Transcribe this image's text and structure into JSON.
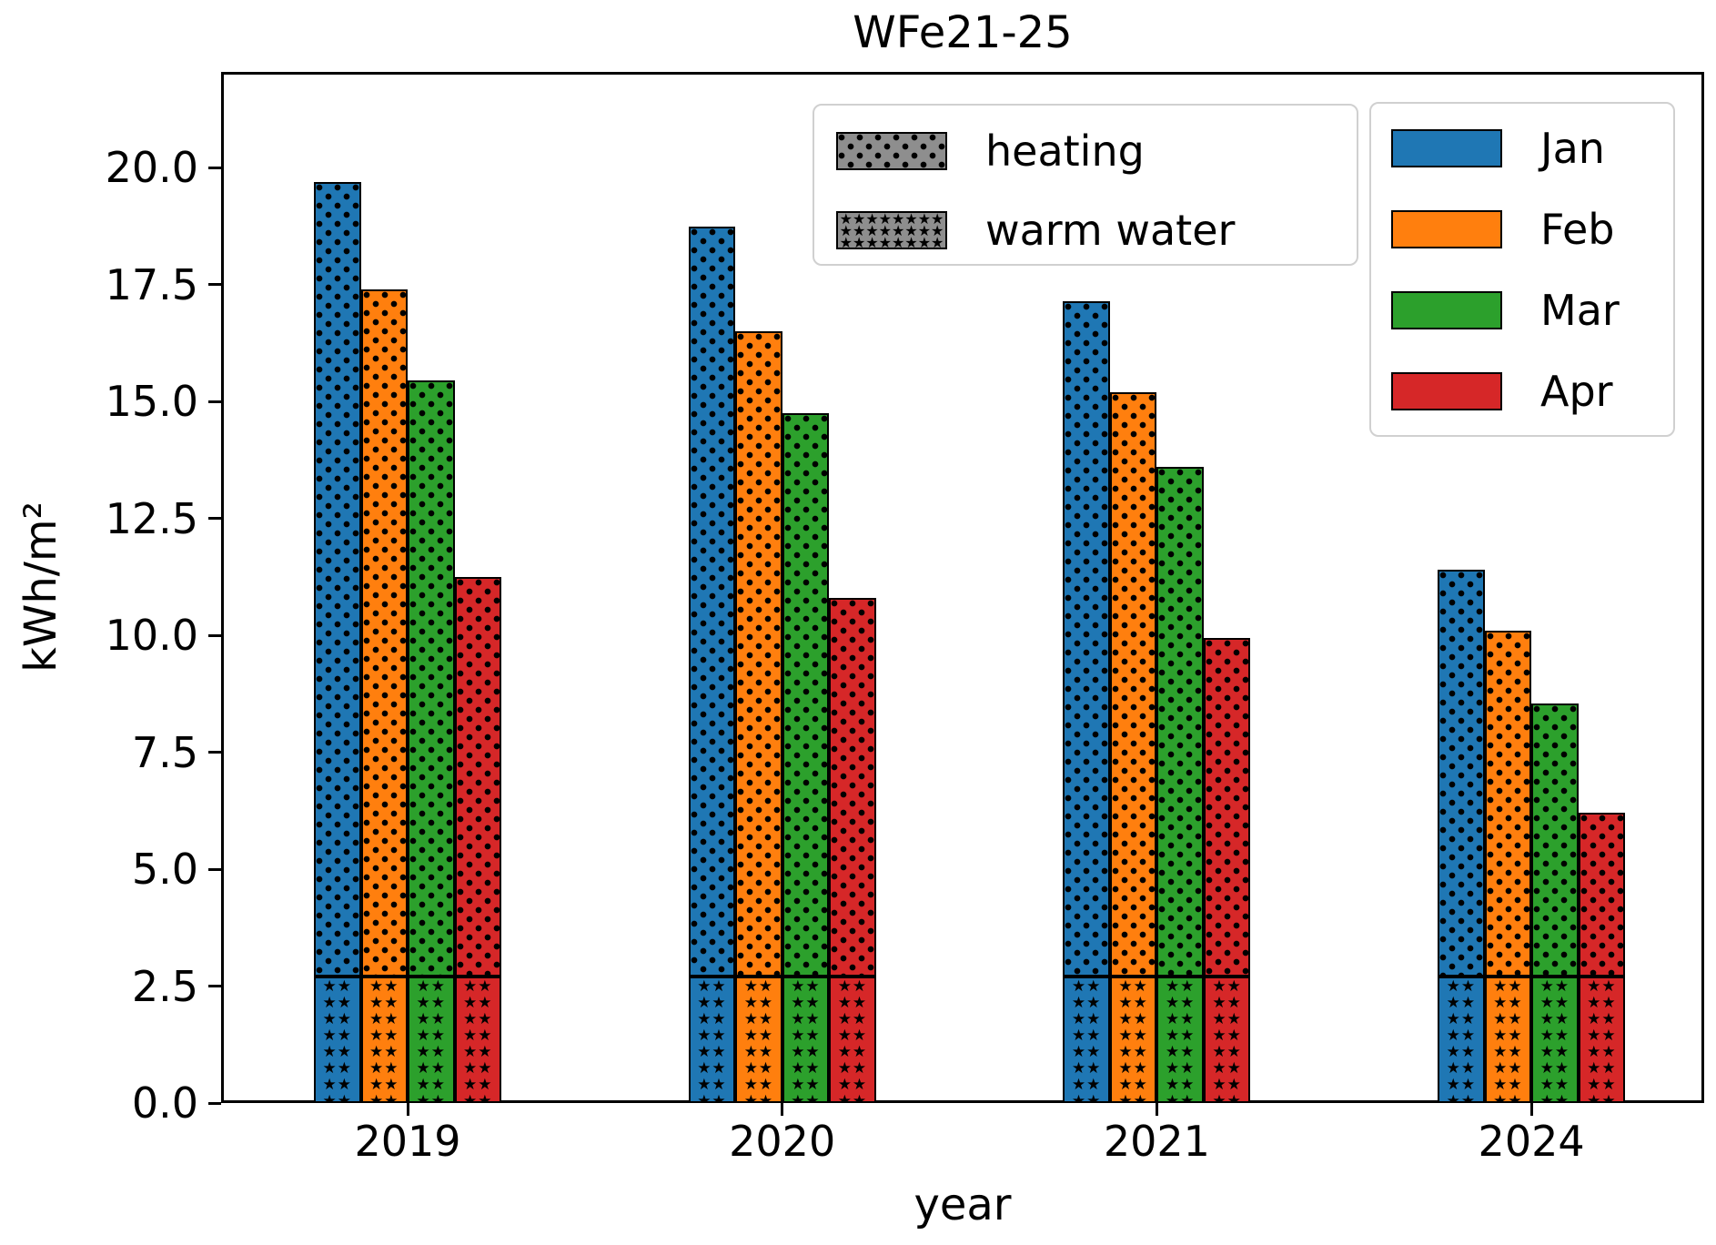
{
  "title": "WFe21-25",
  "axis": {
    "xlabel": "year",
    "ylabel": "kWh/m²",
    "ytick_labels": [
      "0.0",
      "2.5",
      "5.0",
      "7.5",
      "10.0",
      "12.5",
      "15.0",
      "17.5",
      "20.0"
    ],
    "xtick_labels": [
      "2019",
      "2020",
      "2021",
      "2024"
    ]
  },
  "legend_hatch": {
    "items": [
      {
        "label": "heating",
        "hatch": "dots"
      },
      {
        "label": "warm water",
        "hatch": "stars"
      }
    ],
    "patch_color": "#8e8e8e"
  },
  "legend_months": {
    "items": [
      {
        "label": "Jan",
        "color": "#1f77b4"
      },
      {
        "label": "Feb",
        "color": "#ff7f0e"
      },
      {
        "label": "Mar",
        "color": "#2ca02c"
      },
      {
        "label": "Apr",
        "color": "#d62728"
      }
    ]
  },
  "chart_data": {
    "type": "bar",
    "title": "WFe21-25",
    "xlabel": "year",
    "ylabel": "kWh/m²",
    "categories": [
      "2019",
      "2020",
      "2021",
      "2024"
    ],
    "yticks": [
      0.0,
      2.5,
      5.0,
      7.5,
      10.0,
      12.5,
      15.0,
      17.5,
      20.0
    ],
    "ylim": [
      0,
      22.05
    ],
    "grid": false,
    "legend_position": "upper center / upper right",
    "stack_structure": "each bar = warm water (star hatch, 0 to 2.7) + heating (dot hatch, 2.7 to total)",
    "warm_water_height": 2.7,
    "series": [
      {
        "name": "Jan",
        "color": "#1f77b4",
        "totals": [
          19.7,
          18.75,
          17.15,
          11.4
        ]
      },
      {
        "name": "Feb",
        "color": "#ff7f0e",
        "totals": [
          17.4,
          16.5,
          15.2,
          10.1
        ]
      },
      {
        "name": "Mar",
        "color": "#2ca02c",
        "totals": [
          15.45,
          14.75,
          13.6,
          8.55
        ]
      },
      {
        "name": "Apr",
        "color": "#d62728",
        "totals": [
          11.25,
          10.8,
          9.95,
          6.2
        ]
      }
    ],
    "hatch_legend": [
      "heating",
      "warm water"
    ],
    "edge_color": "#000000"
  }
}
